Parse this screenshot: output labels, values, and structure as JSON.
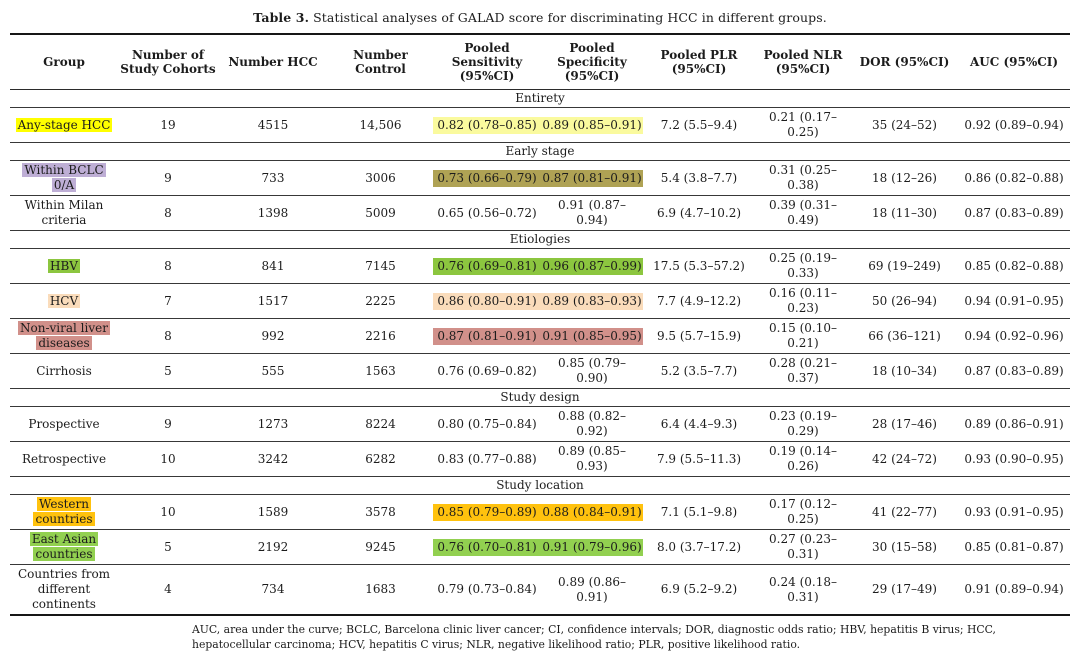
{
  "title": {
    "label": "Table 3.",
    "text": "Statistical analyses of GALAD score for discriminating HCC in different groups."
  },
  "highlight_colors": {
    "yellow": "#FFFF00",
    "pale_yellow": "#FAFA9E",
    "lavender": "#BEAED5",
    "olive": "#AFA254",
    "green": "#8CC63F",
    "peach": "#FADCBB",
    "rose": "#D1908A",
    "amber": "#FFC20E",
    "light_green": "#92D050"
  },
  "table": {
    "columns": [
      "Group",
      "Number of\nStudy Cohorts",
      "Number HCC",
      "Number\nControl",
      "Pooled\nSensitivity\n(95%CI)",
      "Pooled\nSpecificity\n(95%CI)",
      "Pooled PLR\n(95%CI)",
      "Pooled NLR\n(95%CI)",
      "DOR (95%CI)",
      "AUC (95%CI)"
    ],
    "column_keys": [
      "group",
      "study-cohorts",
      "number-hcc",
      "number-control",
      "pooled-sensitivity",
      "pooled-specificity",
      "pooled-plr",
      "pooled-nlr",
      "dor",
      "auc"
    ],
    "sections": [
      {
        "label": "Entirety",
        "rows": [
          {
            "group": "Any-stage HCC",
            "group_hl": "yellow",
            "sens_spec_hl": "pale_yellow",
            "cells": [
              "19",
              "4515",
              "14,506",
              "0.82 (0.78–0.85)",
              "0.89 (0.85–0.91)",
              "7.2 (5.5–9.4)",
              "0.21 (0.17–0.25)",
              "35 (24–52)",
              "0.92 (0.89–0.94)"
            ]
          }
        ]
      },
      {
        "label": "Early stage",
        "rows": [
          {
            "group": "Within BCLC 0/A",
            "group_hl": "lavender",
            "sens_spec_hl": "olive",
            "cells": [
              "9",
              "733",
              "3006",
              "0.73 (0.66–0.79)",
              "0.87 (0.81–0.91)",
              "5.4 (3.8–7.7)",
              "0.31 (0.25–0.38)",
              "18 (12–26)",
              "0.86 (0.82–0.88)"
            ]
          },
          {
            "group": "Within Milan criteria",
            "group_hl": null,
            "sens_spec_hl": null,
            "cells": [
              "8",
              "1398",
              "5009",
              "0.65 (0.56–0.72)",
              "0.91 (0.87–0.94)",
              "6.9 (4.7–10.2)",
              "0.39 (0.31–0.49)",
              "18 (11–30)",
              "0.87 (0.83–0.89)"
            ]
          }
        ]
      },
      {
        "label": "Etiologies",
        "rows": [
          {
            "group": "HBV",
            "group_hl": "green",
            "sens_spec_hl": "green",
            "cells": [
              "8",
              "841",
              "7145",
              "0.76 (0.69–0.81)",
              "0.96 (0.87–0.99)",
              "17.5 (5.3–57.2)",
              "0.25 (0.19–0.33)",
              "69 (19–249)",
              "0.85 (0.82–0.88)"
            ]
          },
          {
            "group": "HCV",
            "group_hl": "peach",
            "sens_spec_hl": "peach",
            "cells": [
              "7",
              "1517",
              "2225",
              "0.86 (0.80–0.91)",
              "0.89 (0.83–0.93)",
              "7.7 (4.9–12.2)",
              "0.16 (0.11–0.23)",
              "50 (26–94)",
              "0.94 (0.91–0.95)"
            ]
          },
          {
            "group": "Non-viral liver diseases",
            "group_hl": "rose",
            "sens_spec_hl": "rose",
            "cells": [
              "8",
              "992",
              "2216",
              "0.87 (0.81–0.91)",
              "0.91 (0.85–0.95)",
              "9.5 (5.7–15.9)",
              "0.15 (0.10–0.21)",
              "66 (36–121)",
              "0.94 (0.92–0.96)"
            ]
          },
          {
            "group": "Cirrhosis",
            "group_hl": null,
            "sens_spec_hl": null,
            "cells": [
              "5",
              "555",
              "1563",
              "0.76 (0.69–0.82)",
              "0.85 (0.79–0.90)",
              "5.2 (3.5–7.7)",
              "0.28 (0.21–0.37)",
              "18 (10–34)",
              "0.87 (0.83–0.89)"
            ]
          }
        ]
      },
      {
        "label": "Study design",
        "rows": [
          {
            "group": "Prospective",
            "group_hl": null,
            "sens_spec_hl": null,
            "cells": [
              "9",
              "1273",
              "8224",
              "0.80 (0.75–0.84)",
              "0.88 (0.82–0.92)",
              "6.4 (4.4–9.3)",
              "0.23 (0.19–0.29)",
              "28 (17–46)",
              "0.89 (0.86–0.91)"
            ]
          },
          {
            "group": "Retrospective",
            "group_hl": null,
            "sens_spec_hl": null,
            "cells": [
              "10",
              "3242",
              "6282",
              "0.83 (0.77–0.88)",
              "0.89 (0.85–0.93)",
              "7.9 (5.5–11.3)",
              "0.19 (0.14–0.26)",
              "42 (24–72)",
              "0.93 (0.90–0.95)"
            ]
          }
        ]
      },
      {
        "label": "Study location",
        "rows": [
          {
            "group": "Western countries",
            "group_hl": "amber",
            "sens_spec_hl": "amber",
            "cells": [
              "10",
              "1589",
              "3578",
              "0.85 (0.79–0.89)",
              "0.88 (0.84–0.91)",
              "7.1 (5.1–9.8)",
              "0.17 (0.12–0.25)",
              "41 (22–77)",
              "0.93 (0.91–0.95)"
            ]
          },
          {
            "group": "East Asian countries",
            "group_hl": "light_green",
            "sens_spec_hl": "light_green",
            "cells": [
              "5",
              "2192",
              "9245",
              "0.76 (0.70–0.81)",
              "0.91 (0.79–0.96)",
              "8.0 (3.7–17.2)",
              "0.27 (0.23–0.31)",
              "30 (15–58)",
              "0.85 (0.81–0.87)"
            ]
          },
          {
            "group": "Countries from different continents",
            "group_hl": null,
            "sens_spec_hl": null,
            "cells": [
              "4",
              "734",
              "1683",
              "0.79 (0.73–0.84)",
              "0.89 (0.86–0.91)",
              "6.9 (5.2–9.2)",
              "0.24 (0.18–0.31)",
              "29 (17–49)",
              "0.91 (0.89–0.94)"
            ]
          }
        ]
      }
    ]
  },
  "footnote": "AUC, area under the curve; BCLC, Barcelona clinic liver cancer; CI, confidence intervals; DOR, diagnostic odds ratio; HBV, hepatitis B virus; HCC, hepatocellular carcinoma; HCV, hepatitis C virus; NLR, negative likelihood ratio; PLR, positive likelihood ratio."
}
